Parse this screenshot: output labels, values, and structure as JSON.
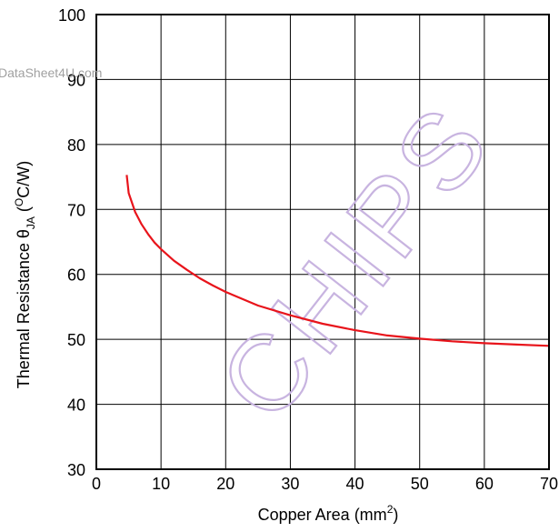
{
  "chart_data": {
    "type": "line",
    "xlabel": "Copper Area (mm",
    "xlabel_sup": "2",
    "xlabel_end": ")",
    "ylabel_main": "Thermal Resistance θ",
    "ylabel_sub": "JA",
    "ylabel_unit_open": " (",
    "ylabel_unit_sup": "O",
    "ylabel_unit": "C/W)",
    "xlim": [
      0,
      70
    ],
    "ylim": [
      30,
      100
    ],
    "x_ticks": [
      0,
      10,
      20,
      30,
      40,
      50,
      60,
      70
    ],
    "y_ticks": [
      30,
      40,
      50,
      60,
      70,
      80,
      90,
      100
    ],
    "grid": true,
    "series": [
      {
        "color": "#e8141b",
        "x": [
          4.7,
          5,
          6,
          7,
          8,
          9,
          10,
          12,
          14,
          16,
          18,
          20,
          25,
          30,
          35,
          40,
          45,
          50,
          55,
          60,
          65,
          70
        ],
        "y": [
          75.3,
          72.5,
          69.6,
          67.7,
          66.2,
          64.9,
          63.9,
          62.1,
          60.7,
          59.4,
          58.3,
          57.3,
          55.2,
          53.7,
          52.4,
          51.4,
          50.6,
          50.1,
          49.7,
          49.4,
          49.2,
          49.0
        ]
      }
    ]
  },
  "watermarks": {
    "site": "DataSheet4U.com",
    "brand": "CHIPS",
    "brand_color": "#c8b4e0"
  }
}
